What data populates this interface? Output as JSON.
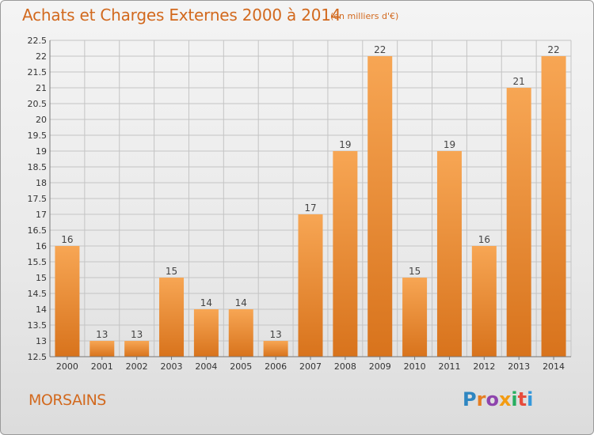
{
  "header": {
    "title": "Achats et Charges Externes 2000 à 2014",
    "unit": "(en milliers d'€)"
  },
  "footer": {
    "commune": "MORSAINS",
    "logo_text": "Proxiti"
  },
  "colors": {
    "accent": "#d2691e",
    "bar_light": "#f7a654",
    "bar_dark": "#d8731c"
  },
  "chart_data": {
    "type": "bar",
    "title": "Achats et Charges Externes 2000 à 2014",
    "subtitle": "(en milliers d'€)",
    "xlabel": "",
    "ylabel": "",
    "categories": [
      "2000",
      "2001",
      "2002",
      "2003",
      "2004",
      "2005",
      "2006",
      "2007",
      "2008",
      "2009",
      "2010",
      "2011",
      "2012",
      "2013",
      "2014"
    ],
    "values": [
      16,
      13,
      13,
      15,
      14,
      14,
      13,
      17,
      19,
      22,
      15,
      19,
      16,
      21,
      22
    ],
    "ylim": [
      12.5,
      22.5
    ],
    "yticks": [
      "12.5",
      "13",
      "13.5",
      "14",
      "14.5",
      "15",
      "15.5",
      "16",
      "16.5",
      "17",
      "17.5",
      "18",
      "18.5",
      "19",
      "19.5",
      "20",
      "20.5",
      "21",
      "21.5",
      "22",
      "22.5"
    ],
    "grid": true,
    "legend": "none"
  }
}
